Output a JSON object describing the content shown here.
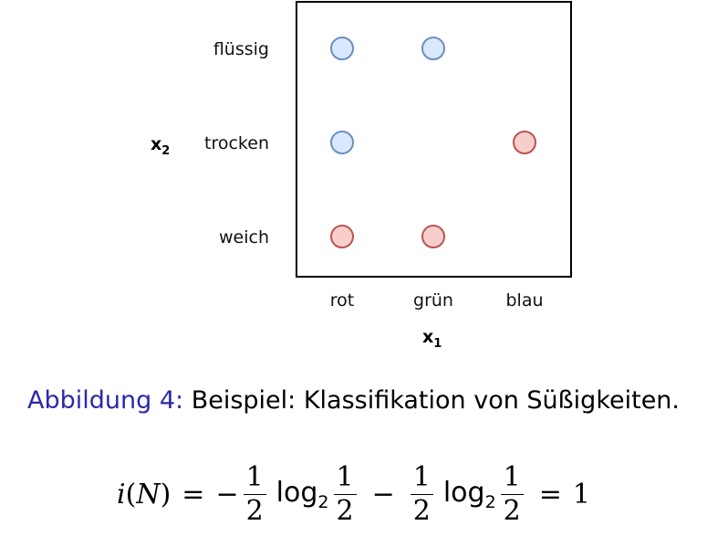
{
  "chart_data": {
    "type": "scatter",
    "xlabel": "x",
    "xlabel_sub": "1",
    "ylabel": "x",
    "ylabel_sub": "2",
    "x_categories": [
      "rot",
      "grün",
      "blau"
    ],
    "y_categories": [
      "flüssig",
      "trocken",
      "weich"
    ],
    "series": [
      {
        "color": "#6c8ebf",
        "fill": "#dae8fc",
        "points": [
          {
            "x": "rot",
            "y": "flüssig"
          },
          {
            "x": "grün",
            "y": "flüssig"
          },
          {
            "x": "rot",
            "y": "trocken"
          }
        ]
      },
      {
        "color": "#b85450",
        "fill": "#f8cecc",
        "points": [
          {
            "x": "blau",
            "y": "trocken"
          },
          {
            "x": "rot",
            "y": "weich"
          },
          {
            "x": "grün",
            "y": "weich"
          }
        ]
      }
    ]
  },
  "caption": {
    "lead": "Abbildung 4:",
    "text": " Beispiel: Klassifikation von Süßigkeiten."
  },
  "formula": {
    "lhs_func": "i",
    "lhs_open": "(",
    "lhs_arg": "N",
    "lhs_close": ")",
    "equals": "=",
    "minus": "−",
    "half_num": "1",
    "half_den": "2",
    "log": "log",
    "log_base": "2",
    "rhs": "1"
  }
}
